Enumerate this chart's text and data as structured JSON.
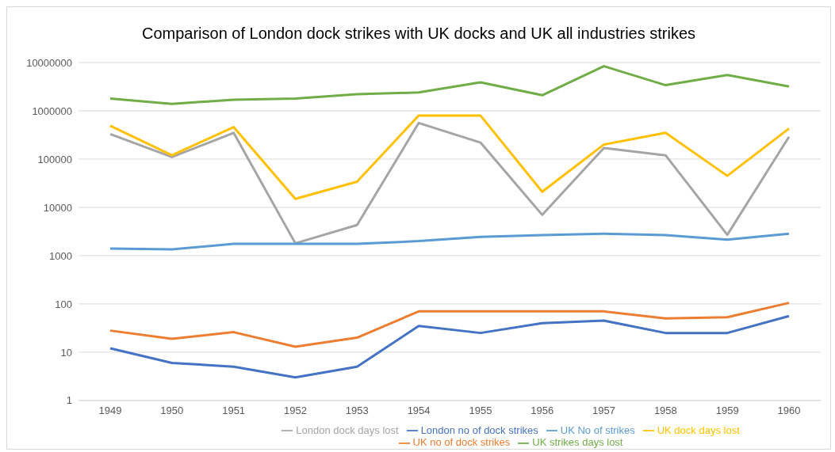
{
  "chart_data": {
    "type": "line",
    "title": "Comparison of London dock strikes with UK docks and UK all industries  strikes",
    "categories": [
      "1949",
      "1950",
      "1951",
      "1952",
      "1953",
      "1954",
      "1955",
      "1956",
      "1957",
      "1958",
      "1959",
      "1960"
    ],
    "series": [
      {
        "name": "London no of dock strikes",
        "color": "#4472c4",
        "values": [
          12,
          6,
          5,
          3,
          5,
          35,
          25,
          40,
          45,
          25,
          25,
          56
        ]
      },
      {
        "name": "UK no of dock strikes",
        "color": "#ed7d31",
        "values": [
          28,
          19,
          26,
          13,
          20,
          70,
          70,
          70,
          70,
          50,
          53,
          105
        ]
      },
      {
        "name": "London dock days lost",
        "color": "#a5a5a5",
        "values": [
          330000,
          110000,
          350000,
          1800,
          4300,
          560000,
          220000,
          7000,
          170000,
          120000,
          2700,
          290000
        ]
      },
      {
        "name": "UK dock days lost",
        "color": "#ffc000",
        "values": [
          490000,
          120000,
          460000,
          15000,
          34000,
          800000,
          800000,
          21000,
          200000,
          350000,
          45000,
          430000
        ]
      },
      {
        "name": "UK No of strikes",
        "color": "#5b9bd5",
        "values": [
          1400,
          1350,
          1750,
          1750,
          1750,
          2000,
          2450,
          2650,
          2850,
          2650,
          2150,
          2850
        ]
      },
      {
        "name": "UK strikes days lost",
        "color": "#70ad47",
        "values": [
          1800000,
          1390000,
          1700000,
          1800000,
          2200000,
          2400000,
          3900000,
          2100000,
          8400000,
          3400000,
          5500000,
          3200000
        ]
      }
    ],
    "log": true,
    "ylim": [
      1,
      10000000
    ],
    "yticks": [
      1,
      10,
      100,
      1000,
      10000,
      100000,
      1000000,
      10000000
    ],
    "grid": "y",
    "legend": "bottom",
    "marker": "none",
    "line_style": "solid"
  }
}
